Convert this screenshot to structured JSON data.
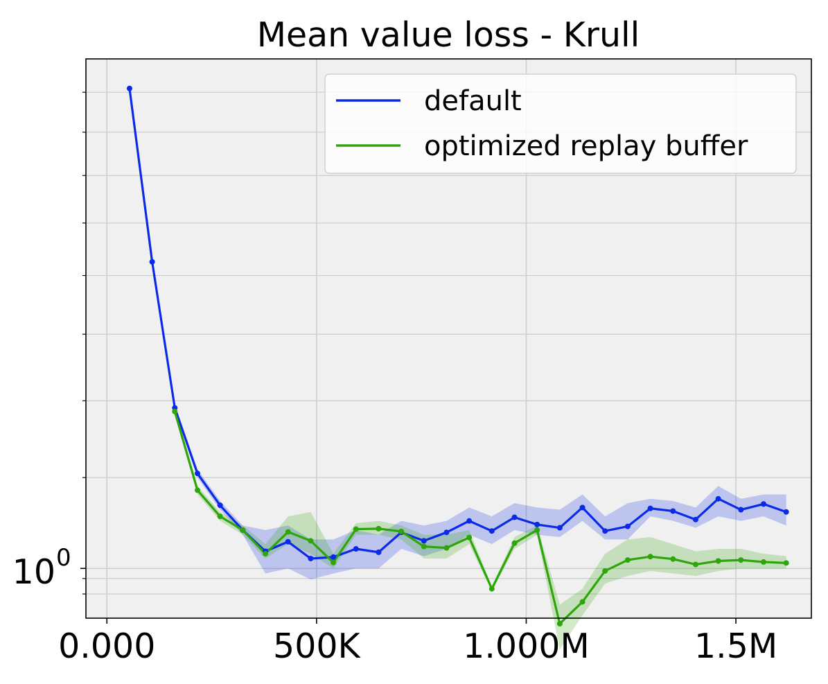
{
  "chart_data": {
    "type": "line",
    "title": "Mean value loss - Krull",
    "xlabel": "",
    "ylabel": "",
    "y_scale": "log",
    "grid": true,
    "legend_position": "top-right",
    "xlim": [
      -50000,
      1680000
    ],
    "ylim": [
      0.905,
      2.78
    ],
    "x_ticks": [
      {
        "value": 0,
        "label": "0.000"
      },
      {
        "value": 500000,
        "label": "500K"
      },
      {
        "value": 1000000,
        "label": "1.000M"
      },
      {
        "value": 1500000,
        "label": "1.5M"
      }
    ],
    "y_ticks": [
      {
        "value": 1.0,
        "label_base": "10",
        "label_exp": "0"
      }
    ],
    "y_minor_ticks": [
      0.95,
      0.98,
      1.2,
      1.4,
      1.6,
      1.8,
      2.0,
      2.2,
      2.4,
      2.6
    ],
    "x": [
      54000,
      108000,
      162000,
      216000,
      270000,
      324000,
      378000,
      432000,
      486000,
      540000,
      594000,
      648000,
      702000,
      756000,
      810000,
      864000,
      918000,
      972000,
      1026000,
      1080000,
      1134000,
      1188000,
      1242000,
      1296000,
      1350000,
      1404000,
      1458000,
      1512000,
      1566000,
      1620000
    ],
    "series": [
      {
        "name": "default",
        "color": "#0a2ae8",
        "values": [
          2.62,
          1.85,
          1.38,
          1.21,
          1.135,
          1.08,
          1.035,
          1.055,
          1.02,
          1.023,
          1.04,
          1.033,
          1.075,
          1.057,
          1.075,
          1.1,
          1.078,
          1.108,
          1.092,
          1.085,
          1.13,
          1.078,
          1.088,
          1.128,
          1.122,
          1.103,
          1.15,
          1.125,
          1.138,
          1.12
        ],
        "band_low": [
          2.62,
          1.85,
          1.37,
          1.2,
          1.125,
          1.07,
          0.99,
          1.0,
          0.978,
          0.99,
          1.0,
          1.0,
          1.04,
          1.025,
          1.04,
          1.07,
          1.05,
          1.08,
          1.07,
          1.065,
          1.1,
          1.06,
          1.06,
          1.11,
          1.1,
          1.085,
          1.11,
          1.1,
          1.11,
          1.09
        ],
        "band_high": [
          2.62,
          1.86,
          1.39,
          1.22,
          1.145,
          1.09,
          1.08,
          1.09,
          1.06,
          1.06,
          1.08,
          1.07,
          1.1,
          1.09,
          1.1,
          1.13,
          1.11,
          1.14,
          1.13,
          1.125,
          1.16,
          1.11,
          1.14,
          1.15,
          1.145,
          1.13,
          1.18,
          1.15,
          1.16,
          1.16
        ]
      },
      {
        "name": "optimized replay buffer",
        "color": "#2ea60b",
        "values": [
          null,
          null,
          1.37,
          1.17,
          1.11,
          1.08,
          1.03,
          1.076,
          1.057,
          1.012,
          1.082,
          1.083,
          1.077,
          1.045,
          1.042,
          1.064,
          0.96,
          1.052,
          1.08,
          0.895,
          0.935,
          0.995,
          1.017,
          1.024,
          1.019,
          1.008,
          1.015,
          1.017,
          1.013,
          1.011
        ],
        "band_low": [
          null,
          null,
          1.36,
          1.16,
          1.1,
          1.07,
          1.02,
          1.05,
          1.03,
          1.0,
          1.07,
          1.07,
          1.06,
          1.02,
          1.02,
          1.05,
          0.955,
          1.04,
          1.07,
          0.85,
          0.91,
          0.97,
          0.985,
          0.995,
          0.99,
          0.985,
          0.995,
          1.0,
          1.0,
          1.0
        ],
        "band_high": [
          null,
          null,
          1.38,
          1.18,
          1.12,
          1.09,
          1.05,
          1.11,
          1.12,
          1.03,
          1.095,
          1.1,
          1.09,
          1.07,
          1.07,
          1.08,
          0.965,
          1.065,
          1.09,
          0.93,
          0.96,
          1.03,
          1.06,
          1.065,
          1.05,
          1.035,
          1.04,
          1.04,
          1.03,
          1.025
        ]
      }
    ]
  }
}
